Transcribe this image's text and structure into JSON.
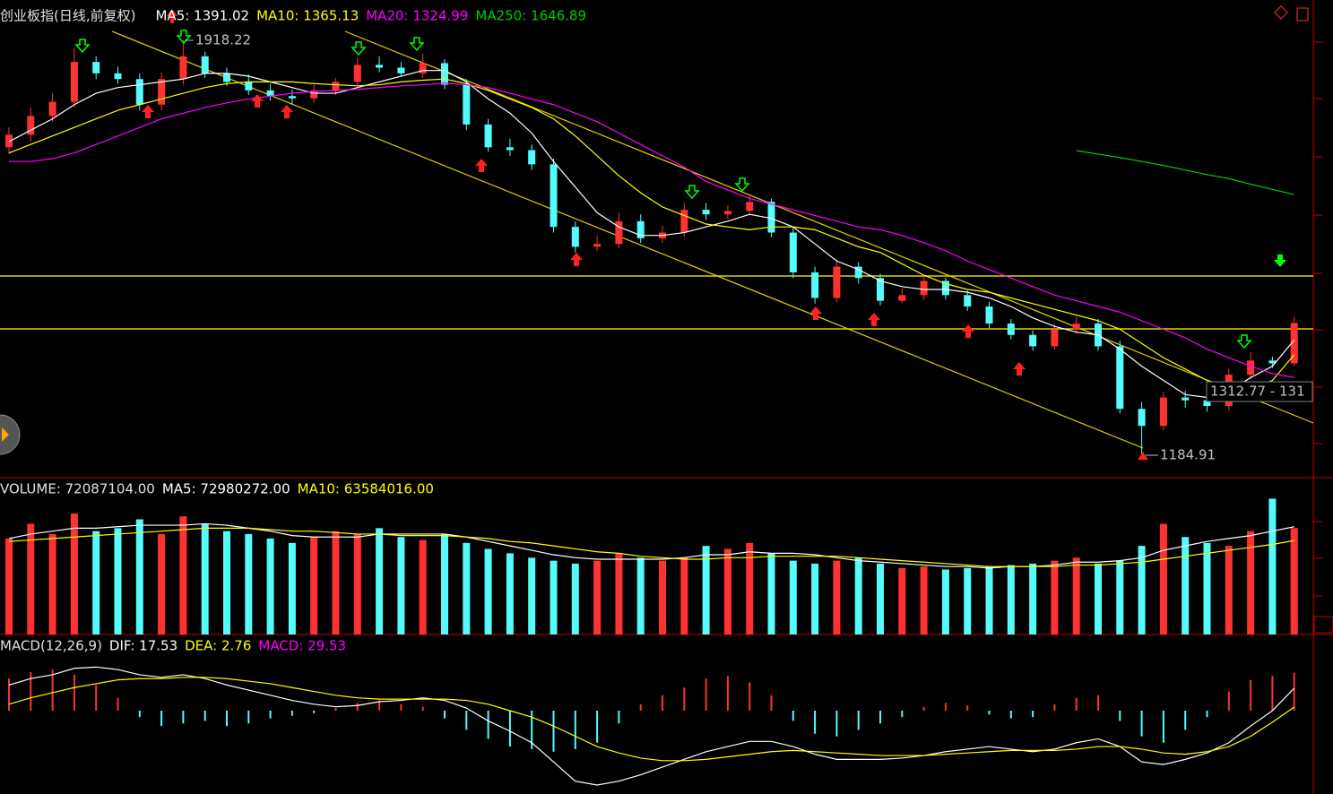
{
  "chart_data": [
    {
      "type": "candlestick",
      "title": "创业板指(日线,前复权)",
      "ylim": [
        1149,
        1989
      ],
      "up_color": "#ff3232",
      "down_color": "#54fcfc",
      "open": [
        1730,
        1752,
        1785,
        1810,
        1880,
        1860,
        1850,
        1805,
        1850,
        1890,
        1860,
        1845,
        1830,
        1820,
        1816,
        1830,
        1845,
        1875,
        1870,
        1860,
        1878,
        1840,
        1770,
        1730,
        1725,
        1700,
        1590,
        1555,
        1560,
        1600,
        1570,
        1580,
        1620,
        1612,
        1618,
        1634,
        1580,
        1510,
        1465,
        1520,
        1500,
        1460,
        1470,
        1495,
        1470,
        1450,
        1420,
        1400,
        1380,
        1410,
        1420,
        1380,
        1270,
        1240,
        1290,
        1285,
        1275,
        1330,
        1355,
        1350
      ],
      "high": [
        1765,
        1800,
        1825,
        1905,
        1890,
        1872,
        1860,
        1862,
        1918.22,
        1898,
        1870,
        1858,
        1842,
        1832,
        1840,
        1852,
        1888,
        1890,
        1880,
        1895,
        1885,
        1850,
        1780,
        1745,
        1735,
        1710,
        1600,
        1575,
        1615,
        1612,
        1592,
        1632,
        1632,
        1628,
        1648,
        1640,
        1590,
        1520,
        1532,
        1528,
        1508,
        1482,
        1505,
        1500,
        1478,
        1458,
        1428,
        1408,
        1420,
        1432,
        1428,
        1390,
        1282,
        1300,
        1302,
        1295,
        1340,
        1370,
        1362,
        1432
      ],
      "low": [
        1718,
        1740,
        1775,
        1800,
        1850,
        1842,
        1795,
        1795,
        1840,
        1852,
        1838,
        1822,
        1812,
        1805,
        1808,
        1822,
        1838,
        1862,
        1855,
        1852,
        1832,
        1760,
        1722,
        1715,
        1690,
        1580,
        1545,
        1548,
        1552,
        1562,
        1562,
        1572,
        1602,
        1604,
        1610,
        1572,
        1500,
        1455,
        1458,
        1490,
        1452,
        1456,
        1462,
        1462,
        1442,
        1412,
        1392,
        1372,
        1374,
        1402,
        1372,
        1262,
        1184.91,
        1232,
        1272,
        1265,
        1268,
        1322,
        1342,
        1345
      ],
      "close": [
        1752,
        1785,
        1810,
        1880,
        1860,
        1850,
        1805,
        1850,
        1890,
        1860,
        1845,
        1830,
        1820,
        1816,
        1830,
        1845,
        1875,
        1870,
        1860,
        1878,
        1840,
        1770,
        1730,
        1725,
        1700,
        1590,
        1555,
        1560,
        1600,
        1570,
        1580,
        1620,
        1612,
        1618,
        1634,
        1580,
        1510,
        1465,
        1520,
        1500,
        1460,
        1470,
        1495,
        1470,
        1450,
        1420,
        1400,
        1380,
        1410,
        1420,
        1380,
        1270,
        1240,
        1290,
        1285,
        1275,
        1330,
        1355,
        1350,
        1421
      ],
      "series": [
        {
          "name": "MA5: 1391.02",
          "color": "#ffffff",
          "values": [
            1740,
            1760,
            1780,
            1805,
            1825,
            1835,
            1840,
            1845,
            1850,
            1860,
            1860,
            1855,
            1845,
            1835,
            1825,
            1825,
            1835,
            1845,
            1855,
            1865,
            1865,
            1845,
            1815,
            1790,
            1755,
            1705,
            1660,
            1615,
            1590,
            1575,
            1575,
            1580,
            1590,
            1600,
            1612,
            1605,
            1590,
            1560,
            1530,
            1515,
            1495,
            1485,
            1480,
            1480,
            1475,
            1465,
            1450,
            1430,
            1415,
            1405,
            1400,
            1375,
            1345,
            1320,
            1295,
            1290,
            1300,
            1325,
            1345,
            1391.02
          ]
        },
        {
          "name": "MA10: 1365.13",
          "color": "#ffff00",
          "values": [
            1720,
            1735,
            1750,
            1765,
            1780,
            1795,
            1805,
            1815,
            1825,
            1835,
            1842,
            1845,
            1845,
            1845,
            1842,
            1840,
            1838,
            1840,
            1845,
            1848,
            1850,
            1842,
            1830,
            1815,
            1800,
            1780,
            1750,
            1715,
            1680,
            1650,
            1625,
            1610,
            1595,
            1590,
            1585,
            1590,
            1590,
            1585,
            1570,
            1555,
            1545,
            1525,
            1505,
            1490,
            1480,
            1475,
            1465,
            1455,
            1445,
            1435,
            1425,
            1410,
            1385,
            1360,
            1340,
            1320,
            1310,
            1305,
            1320,
            1365.13
          ]
        },
        {
          "name": "MA20: 1324.99",
          "color": "#ff00ff",
          "values": [
            1705,
            1705,
            1710,
            1720,
            1735,
            1750,
            1765,
            1780,
            1790,
            1800,
            1808,
            1815,
            1820,
            1825,
            1828,
            1830,
            1832,
            1835,
            1838,
            1840,
            1843,
            1840,
            1835,
            1825,
            1815,
            1805,
            1790,
            1775,
            1755,
            1735,
            1715,
            1695,
            1670,
            1655,
            1640,
            1630,
            1620,
            1610,
            1600,
            1590,
            1585,
            1575,
            1562,
            1548,
            1530,
            1515,
            1500,
            1485,
            1470,
            1460,
            1450,
            1440,
            1425,
            1410,
            1395,
            1375,
            1360,
            1345,
            1332,
            1324.99
          ]
        },
        {
          "name": "MA250: 1646.89",
          "color": "#00cc00",
          "values": [
            null,
            null,
            null,
            null,
            null,
            null,
            null,
            null,
            null,
            null,
            null,
            null,
            null,
            null,
            null,
            null,
            null,
            null,
            null,
            null,
            null,
            null,
            null,
            null,
            null,
            null,
            null,
            null,
            null,
            null,
            null,
            null,
            null,
            null,
            null,
            null,
            null,
            null,
            null,
            null,
            null,
            null,
            null,
            null,
            null,
            null,
            null,
            null,
            null,
            1724,
            1718,
            1712,
            1705,
            1698,
            1690,
            1682,
            1675,
            1665,
            1656,
            1646.89
          ]
        }
      ],
      "annotations": [
        "1312.77 - 131"
      ]
    },
    {
      "type": "bar",
      "title": "VOLUME: 72087104.00",
      "ylim": [
        0,
        105000000
      ],
      "values": [
        65000000,
        75000000,
        68000000,
        82000000,
        70000000,
        72000000,
        78000000,
        68000000,
        80000000,
        75000000,
        70000000,
        68000000,
        65000000,
        62000000,
        66000000,
        70000000,
        68000000,
        72000000,
        66000000,
        64000000,
        68000000,
        62000000,
        58000000,
        55000000,
        52000000,
        50000000,
        48000000,
        50000000,
        55000000,
        52000000,
        50000000,
        52000000,
        60000000,
        58000000,
        62000000,
        55000000,
        50000000,
        48000000,
        50000000,
        52000000,
        48000000,
        45000000,
        46000000,
        44000000,
        45000000,
        46000000,
        47000000,
        48000000,
        50000000,
        52000000,
        48000000,
        50000000,
        60000000,
        75000000,
        66000000,
        62000000,
        60000000,
        70000000,
        92000000,
        72087104
      ],
      "series": [
        {
          "name": "MA5: 72980272.00",
          "color": "#ffffff",
          "values": [
            65000000,
            68000000,
            70000000,
            72000000,
            72000000,
            73000000,
            74000000,
            74000000,
            74000000,
            75000000,
            74000000,
            72000000,
            70000000,
            67000000,
            66000000,
            66000000,
            66000000,
            68000000,
            68000000,
            68000000,
            68000000,
            66000000,
            63000000,
            60000000,
            57000000,
            54000000,
            52000000,
            51000000,
            51000000,
            51000000,
            51000000,
            52000000,
            54000000,
            54000000,
            56000000,
            55000000,
            55000000,
            54000000,
            52000000,
            50000000,
            49000000,
            48000000,
            47000000,
            46000000,
            46000000,
            45000000,
            46000000,
            46000000,
            47000000,
            49000000,
            49000000,
            50000000,
            52000000,
            57000000,
            60000000,
            63000000,
            65000000,
            67000000,
            70000000,
            72980272
          ]
        },
        {
          "name": "MA10: 63584016.00",
          "color": "#ffff00",
          "values": [
            63000000,
            64000000,
            65000000,
            66000000,
            67000000,
            68000000,
            69000000,
            70000000,
            71000000,
            72000000,
            72000000,
            72000000,
            71000000,
            70000000,
            70000000,
            69000000,
            68000000,
            68000000,
            67000000,
            67000000,
            67000000,
            66000000,
            65000000,
            63000000,
            62000000,
            60000000,
            58000000,
            56000000,
            55000000,
            53000000,
            52000000,
            51000000,
            51000000,
            52000000,
            52000000,
            53000000,
            53000000,
            53000000,
            53000000,
            52000000,
            51000000,
            50000000,
            49000000,
            48000000,
            47000000,
            46000000,
            46000000,
            46000000,
            46000000,
            47000000,
            47000000,
            48000000,
            49000000,
            51000000,
            53000000,
            55000000,
            57000000,
            59000000,
            61000000,
            63584016
          ]
        }
      ]
    },
    {
      "type": "macd",
      "title": "MACD(12,26,9)",
      "ylim": [
        -65,
        58
      ],
      "series": [
        {
          "name": "DIF: 17.53",
          "color": "#ffffff",
          "values": [
            20,
            25,
            28,
            33,
            34,
            32,
            28,
            26,
            28,
            25,
            20,
            16,
            12,
            8,
            5,
            3,
            4,
            7,
            8,
            10,
            8,
            2,
            -8,
            -16,
            -25,
            -40,
            -55,
            -58,
            -55,
            -50,
            -44,
            -38,
            -32,
            -28,
            -24,
            -24,
            -28,
            -34,
            -38,
            -38,
            -38,
            -37,
            -35,
            -32,
            -30,
            -28,
            -30,
            -32,
            -30,
            -25,
            -22,
            -28,
            -40,
            -42,
            -38,
            -33,
            -25,
            -12,
            0,
            17.53
          ]
        },
        {
          "name": "DEA: 2.76",
          "color": "#ffff00",
          "values": [
            5,
            10,
            14,
            18,
            21,
            24,
            25,
            25,
            26,
            26,
            25,
            23,
            21,
            18,
            15,
            12,
            10,
            9,
            9,
            9,
            9,
            8,
            5,
            0,
            -5,
            -12,
            -20,
            -28,
            -33,
            -37,
            -39,
            -39,
            -38,
            -36,
            -34,
            -32,
            -31,
            -32,
            -33,
            -34,
            -35,
            -35,
            -35,
            -34,
            -33,
            -32,
            -31,
            -31,
            -31,
            -30,
            -28,
            -28,
            -30,
            -33,
            -34,
            -32,
            -28,
            -20,
            -9,
            2.76
          ]
        }
      ],
      "histogram": {
        "name": "MACD: 29.53",
        "color": "#ff00ff",
        "up_color": "#ff3232",
        "down_color": "#54fcfc",
        "values": [
          25,
          30,
          32,
          28,
          20,
          10,
          -5,
          -12,
          -10,
          -8,
          -12,
          -10,
          -6,
          -4,
          -2,
          2,
          6,
          8,
          5,
          3,
          -6,
          -15,
          -22,
          -28,
          -30,
          -32,
          -30,
          -25,
          -10,
          5,
          12,
          18,
          25,
          27,
          22,
          12,
          -8,
          -18,
          -20,
          -15,
          -10,
          -5,
          3,
          6,
          4,
          -3,
          -6,
          -5,
          5,
          10,
          12,
          -8,
          -20,
          -25,
          -15,
          -5,
          15,
          24,
          27,
          29.53
        ]
      }
    }
  ]
}
